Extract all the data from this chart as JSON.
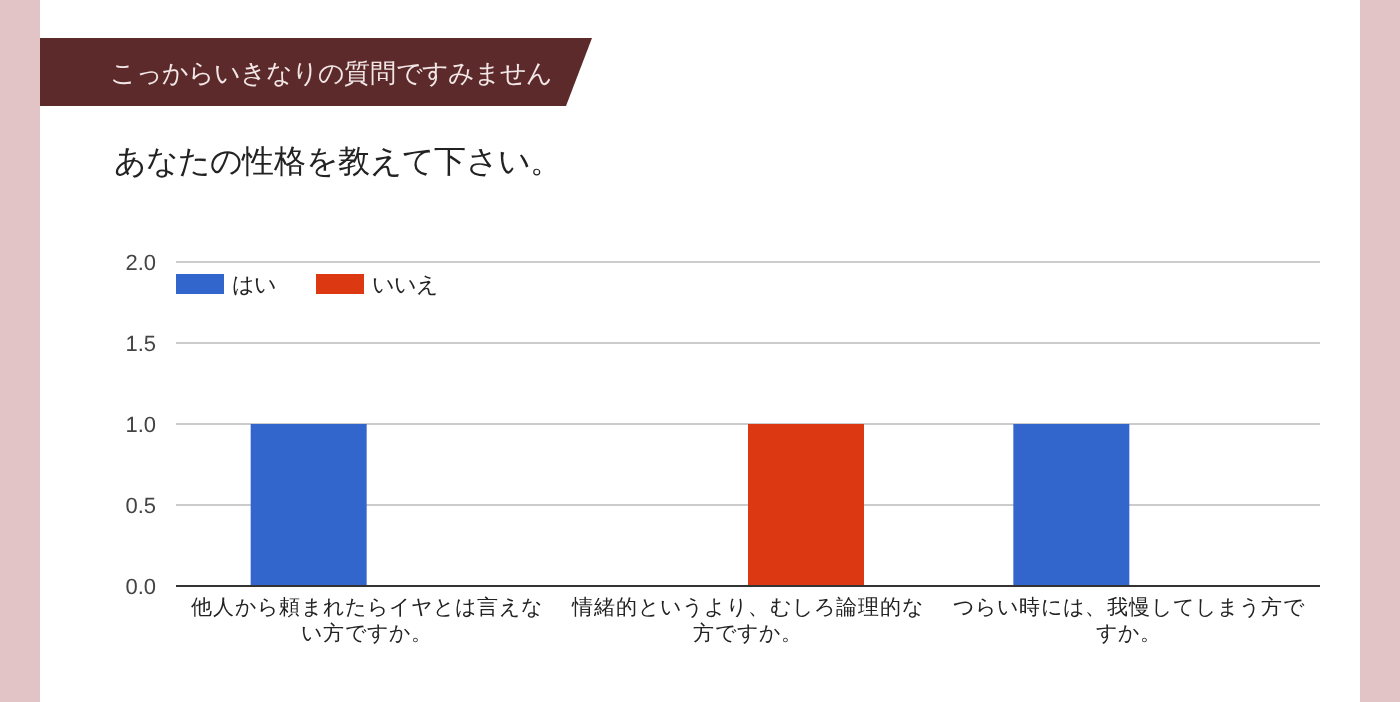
{
  "chart_data": {
    "type": "bar",
    "title": "こっからいきなりの質問ですみません",
    "subtitle": "あなたの性格を教えて下さい。",
    "categories": [
      "他人から頼まれたらイヤとは言えない方ですか。",
      "情緒的というより、むしろ論理的な方ですか。",
      "つらい時には、我慢してしまう方ですか。"
    ],
    "series": [
      {
        "name": "はい",
        "color": "#3366cc",
        "values": [
          1,
          0,
          1
        ]
      },
      {
        "name": "いいえ",
        "color": "#dc3912",
        "values": [
          0,
          1,
          0
        ]
      }
    ],
    "ylim": [
      0,
      2
    ],
    "yticks": [
      {
        "value": 0,
        "label": "0.0"
      },
      {
        "value": 0.5,
        "label": "0.5"
      },
      {
        "value": 1,
        "label": "1.0"
      },
      {
        "value": 1.5,
        "label": "1.5"
      },
      {
        "value": 2,
        "label": "2.0"
      }
    ],
    "grid": "y",
    "legend": "top left"
  }
}
